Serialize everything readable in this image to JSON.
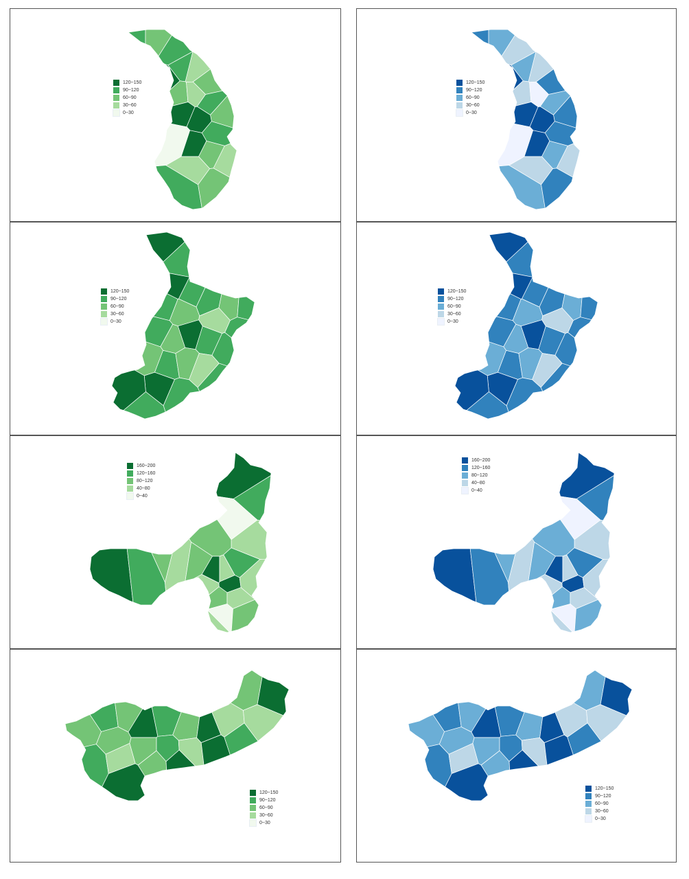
{
  "palettes": {
    "green": [
      "#f1f9ee",
      "#a6db9e",
      "#74c476",
      "#41ab5d",
      "#0b6e32"
    ],
    "blue": [
      "#eff3ff",
      "#bdd7e7",
      "#6baed6",
      "#3182bd",
      "#08519c"
    ]
  },
  "rows": [
    {
      "legend_labels": [
        "120~150",
        "90~120",
        "60~90",
        "30~60",
        "0~30"
      ],
      "maps": [
        {
          "region": "east",
          "palette": "green",
          "classes": [
            3,
            2,
            3,
            1,
            2,
            3,
            4,
            2,
            1,
            3,
            2,
            4,
            4,
            3,
            0,
            4,
            2,
            1,
            1,
            3,
            2
          ]
        },
        {
          "region": "east",
          "palette": "blue",
          "classes": [
            3,
            2,
            1,
            1,
            3,
            2,
            4,
            1,
            0,
            2,
            3,
            4,
            4,
            3,
            0,
            4,
            2,
            1,
            1,
            2,
            3
          ]
        }
      ]
    },
    {
      "legend_labels": [
        "120~150",
        "90~120",
        "60~90",
        "30~60",
        "0~30"
      ],
      "maps": [
        {
          "region": "northeast",
          "palette": "green",
          "classes": [
            4,
            3,
            4,
            3,
            3,
            2,
            3,
            3,
            2,
            1,
            3,
            3,
            2,
            4,
            3,
            3,
            2,
            3,
            2,
            1,
            3
          ]
        },
        {
          "region": "northeast",
          "palette": "blue",
          "classes": [
            4,
            3,
            4,
            3,
            3,
            2,
            3,
            3,
            2,
            1,
            3,
            3,
            2,
            4,
            3,
            3,
            2,
            3,
            2,
            1,
            3
          ]
        }
      ]
    },
    {
      "legend_labels": [
        "160~200",
        "120~160",
        "80~120",
        "40~80",
        "0~40"
      ],
      "maps": [
        {
          "region": "north",
          "palette": "green",
          "classes": [
            4,
            3,
            0,
            1,
            2,
            4,
            3,
            2,
            1,
            2,
            4,
            1,
            3,
            1,
            4,
            1,
            2,
            1,
            0,
            2,
            1
          ]
        },
        {
          "region": "north",
          "palette": "blue",
          "classes": [
            4,
            3,
            0,
            1,
            2,
            4,
            3,
            2,
            1,
            2,
            4,
            1,
            3,
            1,
            4,
            1,
            2,
            1,
            0,
            2,
            1
          ]
        }
      ]
    },
    {
      "legend_labels": [
        "120~150",
        "90~120",
        "60~90",
        "30~60",
        "0~30"
      ],
      "maps": [
        {
          "region": "south",
          "palette": "green",
          "classes": [
            2,
            3,
            2,
            4,
            2,
            3,
            2,
            4,
            1,
            2,
            4,
            3,
            1,
            2,
            3,
            1,
            4,
            3,
            1,
            4,
            2,
            4
          ]
        },
        {
          "region": "south",
          "palette": "blue",
          "classes": [
            2,
            3,
            2,
            4,
            2,
            3,
            2,
            4,
            1,
            2,
            4,
            3,
            1,
            2,
            3,
            1,
            4,
            3,
            1,
            4,
            2,
            4
          ]
        }
      ]
    }
  ]
}
